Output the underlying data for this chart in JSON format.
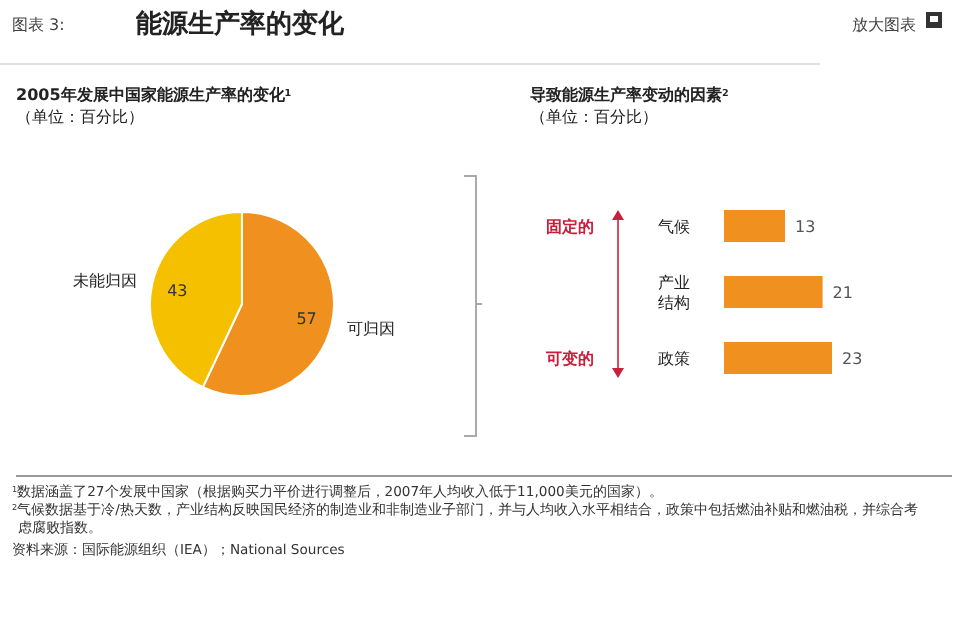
{
  "chart_data": [
    {
      "type": "pie",
      "title": "2005年发展中国家能源生产率的变化$^{1}$",
      "subtitle": "（单位：百分比）",
      "categories": [
        "可归因",
        "未能归因"
      ],
      "values": [
        57,
        43
      ],
      "colors": [
        "#f0901e",
        "#f5c000"
      ],
      "data_labels": true
    },
    {
      "type": "bar",
      "orientation": "horizontal",
      "title": "导致能源生产率变动的因素$^{2}$",
      "subtitle": "（单位：百分比）",
      "categories": [
        "气候",
        "产业结构",
        "政策"
      ],
      "values": [
        13,
        21,
        23
      ],
      "color": "#f0901e",
      "data_labels": true,
      "annotations": [
        "固定的",
        "可变的"
      ]
    },
    {
      "type": "other",
      "title": "能源生产率的变化",
      "annotations": [
        "图表 3:",
        "放大图表",
        "$^{1}$数据涵盖了27个发展中国家（根据购买力平价进行调整后，2007年人均收入低于11,000美元的国家）。",
        "$^{2}$气候数据基于冷/热天数，产业结构反映国民经济的制造业和非制造业子部门，并与人均收入水平相结合，政策中包括燃油补贴和燃油税，并综合考虑腐败指数。",
        "资料来源：国际能源组织（IEA）；National Sources"
      ]
    }
  ]
}
